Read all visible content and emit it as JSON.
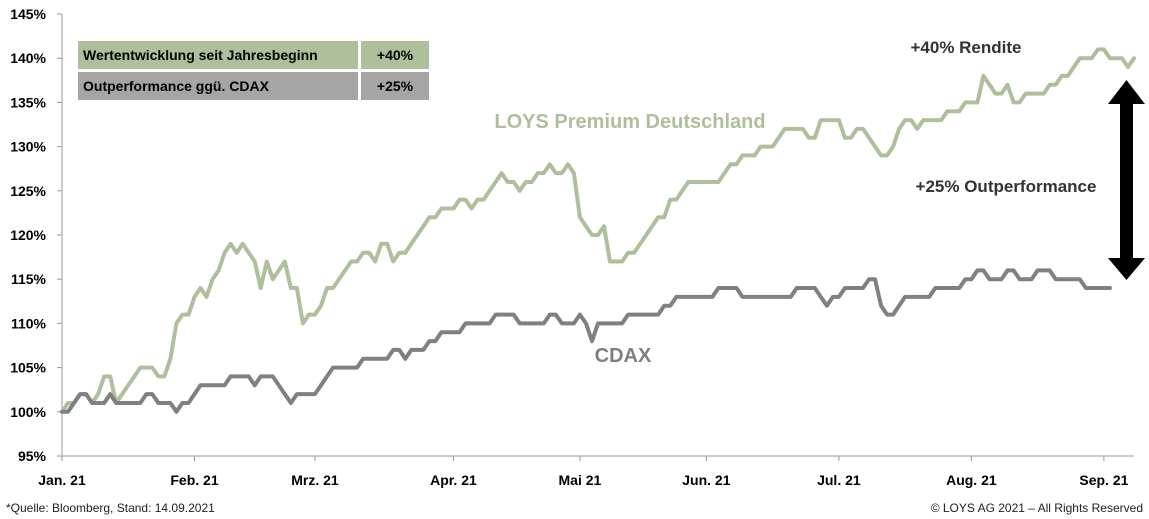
{
  "legend_table": [
    {
      "label": "Wertentwicklung seit Jahresbeginn",
      "value": "+40%"
    },
    {
      "label": "Outperformance ggü. CDAX",
      "value": "+25%"
    }
  ],
  "annotations": {
    "rendite": "+40% Rendite",
    "outperformance": "+25% Outperformance"
  },
  "footer": {
    "source": "*Quelle: Bloomberg, Stand: 14.09.2021",
    "copyright": "© LOYS AG 2021 – All Rights Reserved"
  },
  "colors": {
    "loys": "#adc09b",
    "cdax": "#808080",
    "arrow": "#000000"
  },
  "chart_data": {
    "type": "line",
    "title": "",
    "xlabel": "",
    "ylabel": "",
    "ylim": [
      95,
      145
    ],
    "grid": false,
    "y_ticks": [
      "95%",
      "100%",
      "105%",
      "110%",
      "115%",
      "120%",
      "125%",
      "130%",
      "135%",
      "140%",
      "145%"
    ],
    "x_ticks": [
      "Jan. 21",
      "Feb. 21",
      "Mrz. 21",
      "Apr. 21",
      "Mai 21",
      "Jun. 21",
      "Jul. 21",
      "Aug. 21",
      "Sep. 21"
    ],
    "x_tick_index": [
      0,
      22,
      42,
      65,
      86,
      107,
      129,
      151,
      173
    ],
    "series": [
      {
        "name": "LOYS Premium Deutschland",
        "values": [
          100,
          101,
          101,
          102,
          102,
          101,
          102,
          104,
          104,
          101,
          102,
          103,
          104,
          105,
          105,
          105,
          104,
          104,
          106,
          110,
          111,
          111,
          113,
          114,
          113,
          115,
          116,
          118,
          119,
          118,
          119,
          118,
          117,
          114,
          117,
          115,
          116,
          117,
          114,
          114,
          110,
          111,
          111,
          112,
          114,
          114,
          115,
          116,
          117,
          117,
          118,
          118,
          117,
          119,
          119,
          117,
          118,
          118,
          119,
          120,
          121,
          122,
          122,
          123,
          123,
          123,
          124,
          124,
          123,
          124,
          124,
          125,
          126,
          127,
          126,
          126,
          125,
          126,
          126,
          127,
          127,
          128,
          127,
          127,
          128,
          127,
          122,
          121,
          120,
          120,
          121,
          117,
          117,
          117,
          118,
          118,
          119,
          120,
          121,
          122,
          122,
          124,
          124,
          125,
          126,
          126,
          126,
          126,
          126,
          126,
          127,
          128,
          128,
          129,
          129,
          129,
          130,
          130,
          130,
          131,
          132,
          132,
          132,
          132,
          131,
          131,
          133,
          133,
          133,
          133,
          131,
          131,
          132,
          132,
          131,
          130,
          129,
          129,
          130,
          132,
          133,
          133,
          132,
          133,
          133,
          133,
          133,
          134,
          134,
          134,
          135,
          135,
          135,
          138,
          137,
          136,
          136,
          137,
          135,
          135,
          136,
          136,
          136,
          136,
          137,
          137,
          138,
          138,
          139,
          140,
          140,
          140,
          141,
          141,
          140,
          140,
          140,
          139,
          140
        ]
      },
      {
        "name": "CDAX",
        "values": [
          100,
          100,
          101,
          102,
          102,
          101,
          101,
          101,
          102,
          101,
          101,
          101,
          101,
          101,
          102,
          102,
          101,
          101,
          101,
          100,
          101,
          101,
          102,
          103,
          103,
          103,
          103,
          103,
          104,
          104,
          104,
          104,
          103,
          104,
          104,
          104,
          103,
          102,
          101,
          102,
          102,
          102,
          102,
          103,
          104,
          105,
          105,
          105,
          105,
          105,
          106,
          106,
          106,
          106,
          106,
          107,
          107,
          106,
          107,
          107,
          107,
          108,
          108,
          109,
          109,
          109,
          109,
          110,
          110,
          110,
          110,
          110,
          111,
          111,
          111,
          111,
          110,
          110,
          110,
          110,
          110,
          111,
          111,
          110,
          110,
          110,
          111,
          110,
          108,
          110,
          110,
          110,
          110,
          110,
          111,
          111,
          111,
          111,
          111,
          111,
          112,
          112,
          113,
          113,
          113,
          113,
          113,
          113,
          113,
          114,
          114,
          114,
          114,
          113,
          113,
          113,
          113,
          113,
          113,
          113,
          113,
          113,
          114,
          114,
          114,
          114,
          113,
          112,
          113,
          113,
          114,
          114,
          114,
          114,
          115,
          115,
          112,
          111,
          111,
          112,
          113,
          113,
          113,
          113,
          113,
          114,
          114,
          114,
          114,
          114,
          115,
          115,
          116,
          116,
          115,
          115,
          115,
          116,
          116,
          115,
          115,
          115,
          116,
          116,
          116,
          115,
          115,
          115,
          115,
          115,
          114,
          114,
          114,
          114,
          114
        ]
      }
    ]
  }
}
